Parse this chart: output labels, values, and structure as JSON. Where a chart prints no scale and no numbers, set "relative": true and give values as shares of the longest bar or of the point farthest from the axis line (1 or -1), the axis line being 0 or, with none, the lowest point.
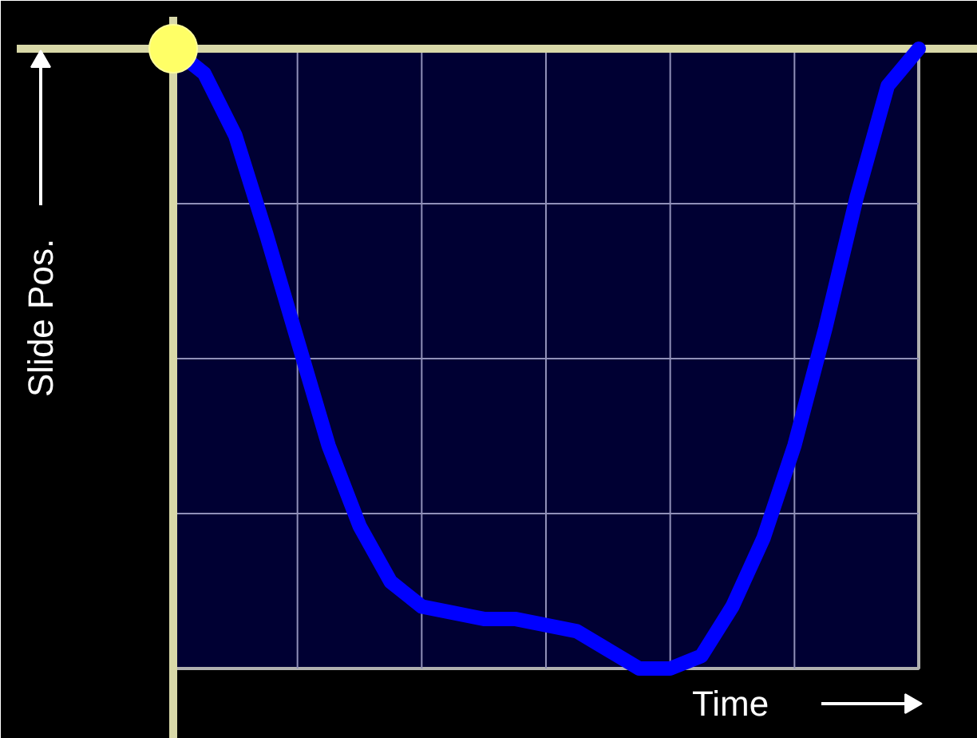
{
  "chart_data": {
    "type": "line",
    "relative": true,
    "grid": true,
    "xlabel": "Time",
    "ylabel": "Slide Pos.",
    "color": "#0000ff",
    "categories": [
      null,
      null,
      null,
      null,
      null,
      null,
      null,
      null,
      null,
      null,
      null,
      null,
      null,
      null,
      null,
      null,
      null,
      null,
      null,
      null,
      null,
      null,
      null,
      null,
      null
    ],
    "values": [
      1.0,
      0.96,
      0.86,
      0.7,
      0.53,
      0.36,
      0.23,
      0.14,
      0.1,
      0.09,
      0.08,
      0.08,
      0.07,
      0.06,
      0.03,
      0.0,
      0.0,
      0.02,
      0.1,
      0.21,
      0.36,
      0.55,
      0.76,
      0.94,
      1.0
    ]
  }
}
